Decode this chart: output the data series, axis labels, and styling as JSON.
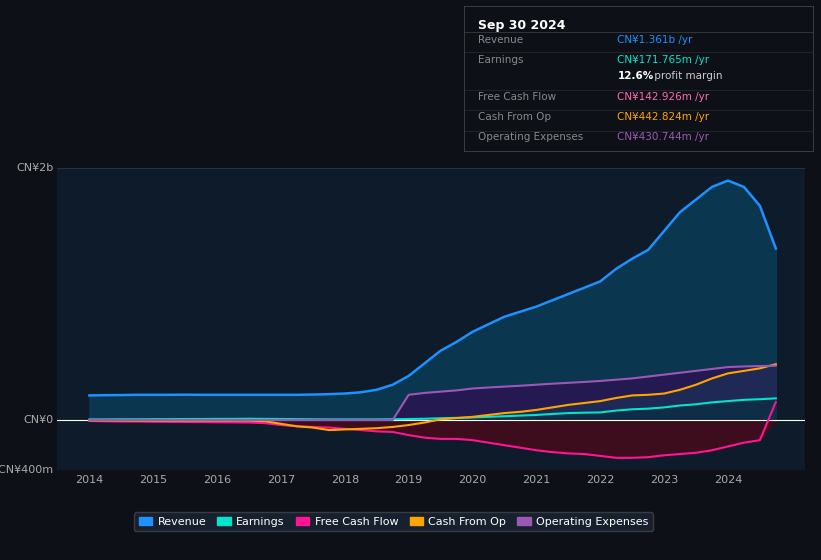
{
  "bg_color": "#0d1117",
  "plot_bg_color": "#0d1b2a",
  "title": "Sep 30 2024",
  "years": [
    2014,
    2014.25,
    2014.5,
    2014.75,
    2015,
    2015.25,
    2015.5,
    2015.75,
    2016,
    2016.25,
    2016.5,
    2016.75,
    2017,
    2017.25,
    2017.5,
    2017.75,
    2018,
    2018.25,
    2018.5,
    2018.75,
    2019,
    2019.25,
    2019.5,
    2019.75,
    2020,
    2020.25,
    2020.5,
    2020.75,
    2021,
    2021.25,
    2021.5,
    2021.75,
    2022,
    2022.25,
    2022.5,
    2022.75,
    2023,
    2023.25,
    2023.5,
    2023.75,
    2024,
    2024.25,
    2024.5,
    2024.75
  ],
  "revenue": [
    195,
    197,
    198,
    200,
    200,
    200,
    201,
    200,
    200,
    200,
    200,
    200,
    200,
    200,
    202,
    205,
    210,
    220,
    240,
    280,
    350,
    450,
    550,
    620,
    700,
    760,
    820,
    860,
    900,
    950,
    1000,
    1050,
    1100,
    1200,
    1280,
    1350,
    1500,
    1650,
    1750,
    1850,
    1900,
    1850,
    1700,
    1361
  ],
  "earnings": [
    5,
    5,
    6,
    6,
    7,
    7,
    8,
    8,
    9,
    9,
    10,
    9,
    8,
    7,
    6,
    5,
    5,
    5,
    5,
    6,
    8,
    10,
    14,
    17,
    20,
    25,
    30,
    35,
    40,
    48,
    55,
    58,
    60,
    75,
    85,
    90,
    100,
    115,
    125,
    140,
    150,
    160,
    165,
    171.765
  ],
  "free_cash_flow": [
    -8,
    -10,
    -12,
    -12,
    -14,
    -15,
    -16,
    -16,
    -18,
    -19,
    -20,
    -25,
    -40,
    -50,
    -55,
    -60,
    -70,
    -80,
    -90,
    -95,
    -120,
    -140,
    -150,
    -150,
    -160,
    -180,
    -200,
    -220,
    -240,
    -255,
    -265,
    -270,
    -285,
    -300,
    -300,
    -295,
    -280,
    -270,
    -260,
    -240,
    -210,
    -180,
    -160,
    142.926
  ],
  "cash_from_op": [
    -3,
    -4,
    -4,
    -5,
    -5,
    -5,
    -5,
    -5,
    -5,
    -5,
    -5,
    -10,
    -30,
    -50,
    -60,
    -80,
    -75,
    -70,
    -65,
    -55,
    -40,
    -20,
    5,
    15,
    25,
    40,
    55,
    65,
    80,
    100,
    120,
    135,
    150,
    175,
    195,
    200,
    210,
    240,
    280,
    330,
    370,
    390,
    410,
    442.824
  ],
  "operating_expenses": [
    0,
    0,
    0,
    0,
    0,
    0,
    0,
    0,
    0,
    0,
    0,
    0,
    0,
    0,
    0,
    0,
    0,
    0,
    0,
    0,
    200,
    215,
    225,
    235,
    250,
    258,
    265,
    272,
    280,
    288,
    295,
    302,
    310,
    320,
    330,
    345,
    360,
    375,
    390,
    405,
    420,
    425,
    428,
    430.744
  ],
  "ylim": [
    -400,
    2000
  ],
  "revenue_color": "#1e90ff",
  "earnings_color": "#00e5cc",
  "free_cash_flow_color": "#ff1493",
  "cash_from_op_color": "#ffa500",
  "operating_expenses_color": "#9b59b6",
  "revenue_fill_color": "#0a3a55",
  "free_cash_flow_fill_color": "#4a0a1a",
  "operating_expenses_fill_color": "#2d1050",
  "cash_from_op_fill_color": "#1a3a5a",
  "earnings_fill_color": "#083040",
  "legend_items": [
    {
      "label": "Revenue",
      "color": "#1e90ff"
    },
    {
      "label": "Earnings",
      "color": "#00e5cc"
    },
    {
      "label": "Free Cash Flow",
      "color": "#ff1493"
    },
    {
      "label": "Cash From Op",
      "color": "#ffa500"
    },
    {
      "label": "Operating Expenses",
      "color": "#9b59b6"
    }
  ],
  "info_title": "Sep 30 2024",
  "info_rows": [
    {
      "label": "Revenue",
      "value": "CN¥1.361b /yr",
      "value_color": "#1e90ff",
      "bold": false
    },
    {
      "label": "Earnings",
      "value": "CN¥171.765m /yr",
      "value_color": "#00e5cc",
      "bold": false
    },
    {
      "label": "",
      "value": "12.6% profit margin",
      "value_color": "#ffffff",
      "bold": true
    },
    {
      "label": "Free Cash Flow",
      "value": "CN¥142.926m /yr",
      "value_color": "#ff69b4",
      "bold": false
    },
    {
      "label": "Cash From Op",
      "value": "CN¥442.824m /yr",
      "value_color": "#ffa500",
      "bold": false
    },
    {
      "label": "Operating Expenses",
      "value": "CN¥430.744m /yr",
      "value_color": "#9b59b6",
      "bold": false
    }
  ],
  "xticks": [
    2014,
    2015,
    2016,
    2017,
    2018,
    2019,
    2020,
    2021,
    2022,
    2023,
    2024
  ],
  "ytick_labels_pos": [
    -400,
    0,
    2000
  ],
  "ytick_labels_text": [
    "-CN¥400m",
    "CN¥0",
    "CN¥2b"
  ]
}
